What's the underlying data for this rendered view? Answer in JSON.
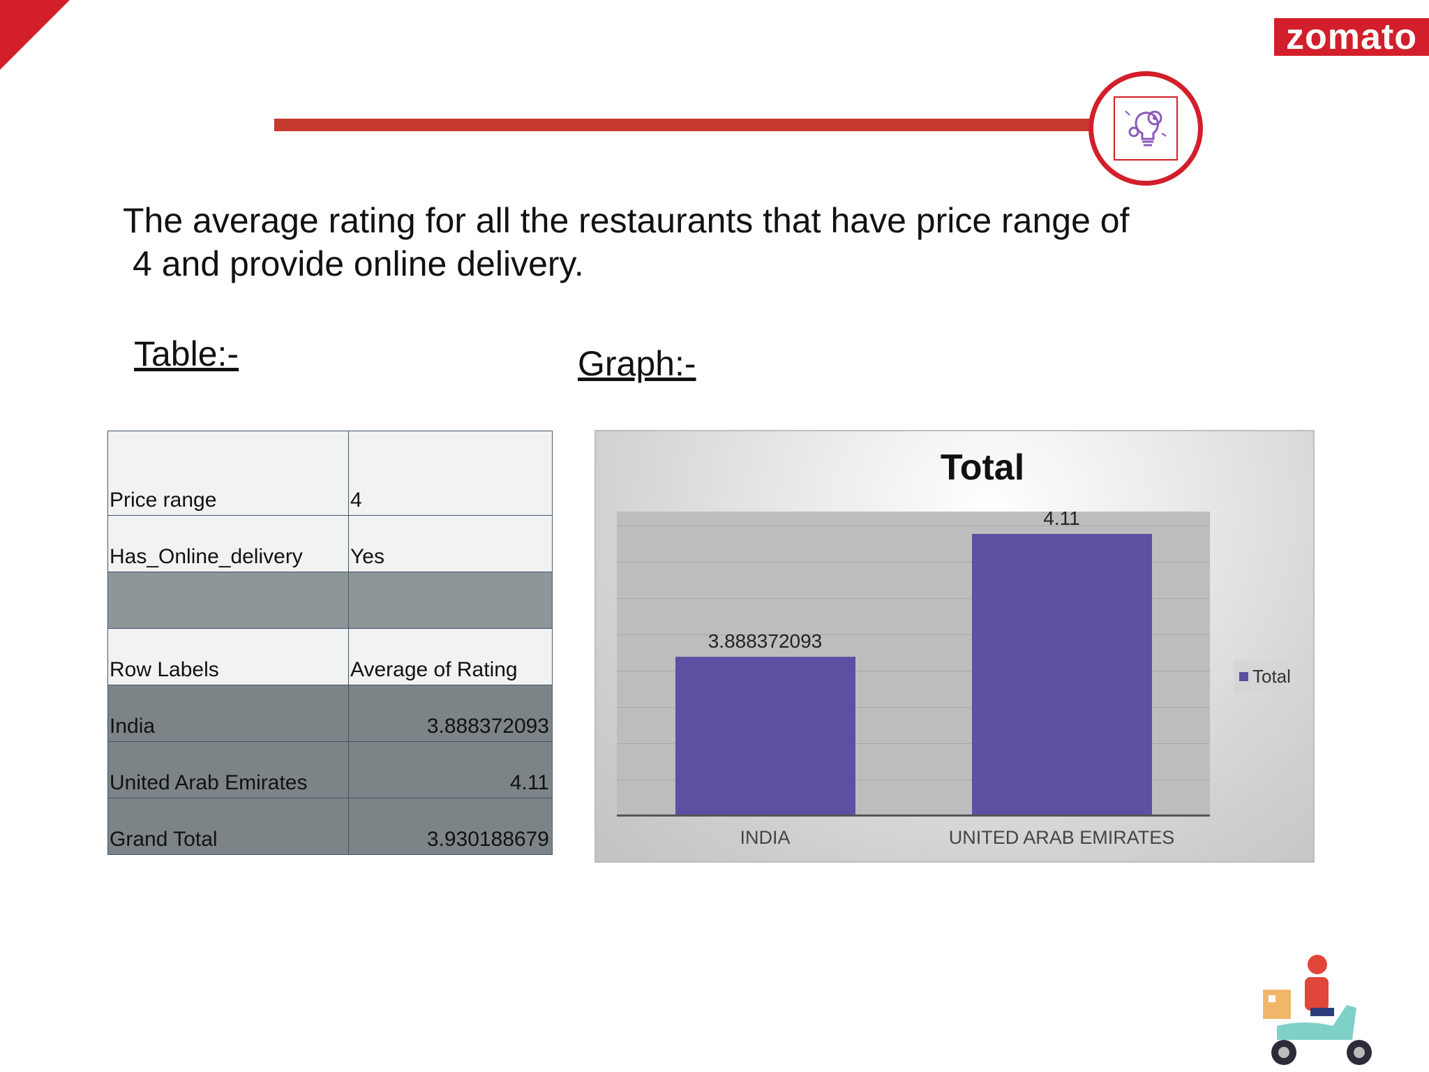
{
  "brand": {
    "logo_text": "zomato",
    "accent": "#d21f2b"
  },
  "heading": {
    "line1": "The average rating for all the restaurants that have price range of",
    "line2": "4 and provide online delivery."
  },
  "labels": {
    "table": "Table:-",
    "graph": "Graph:-"
  },
  "pivot": {
    "filters": [
      {
        "name": "Price range",
        "value": "4"
      },
      {
        "name": "Has_Online_delivery",
        "value": "Yes"
      }
    ],
    "header": {
      "col1": "Row Labels",
      "col2": "Average of Rating"
    },
    "rows": [
      {
        "label": "India",
        "value": "3.888372093"
      },
      {
        "label": "United Arab Emirates",
        "value": "4.11"
      }
    ],
    "total": {
      "label": "Grand Total",
      "value": "3.930188679"
    }
  },
  "chart_data": {
    "type": "bar",
    "title": "Total",
    "categories": [
      "INDIA",
      "UNITED ARAB EMIRATES"
    ],
    "series": [
      {
        "name": "Total",
        "values": [
          3.888372093,
          4.11
        ],
        "color": "#5e4fa2"
      }
    ],
    "data_labels": [
      "3.888372093",
      "4.11"
    ],
    "ylim": [
      3.6,
      4.15
    ],
    "grid": true,
    "legend_position": "right"
  },
  "icons": {
    "badge": "lightbulb-gear-icon",
    "scooter": "delivery-scooter-icon"
  }
}
